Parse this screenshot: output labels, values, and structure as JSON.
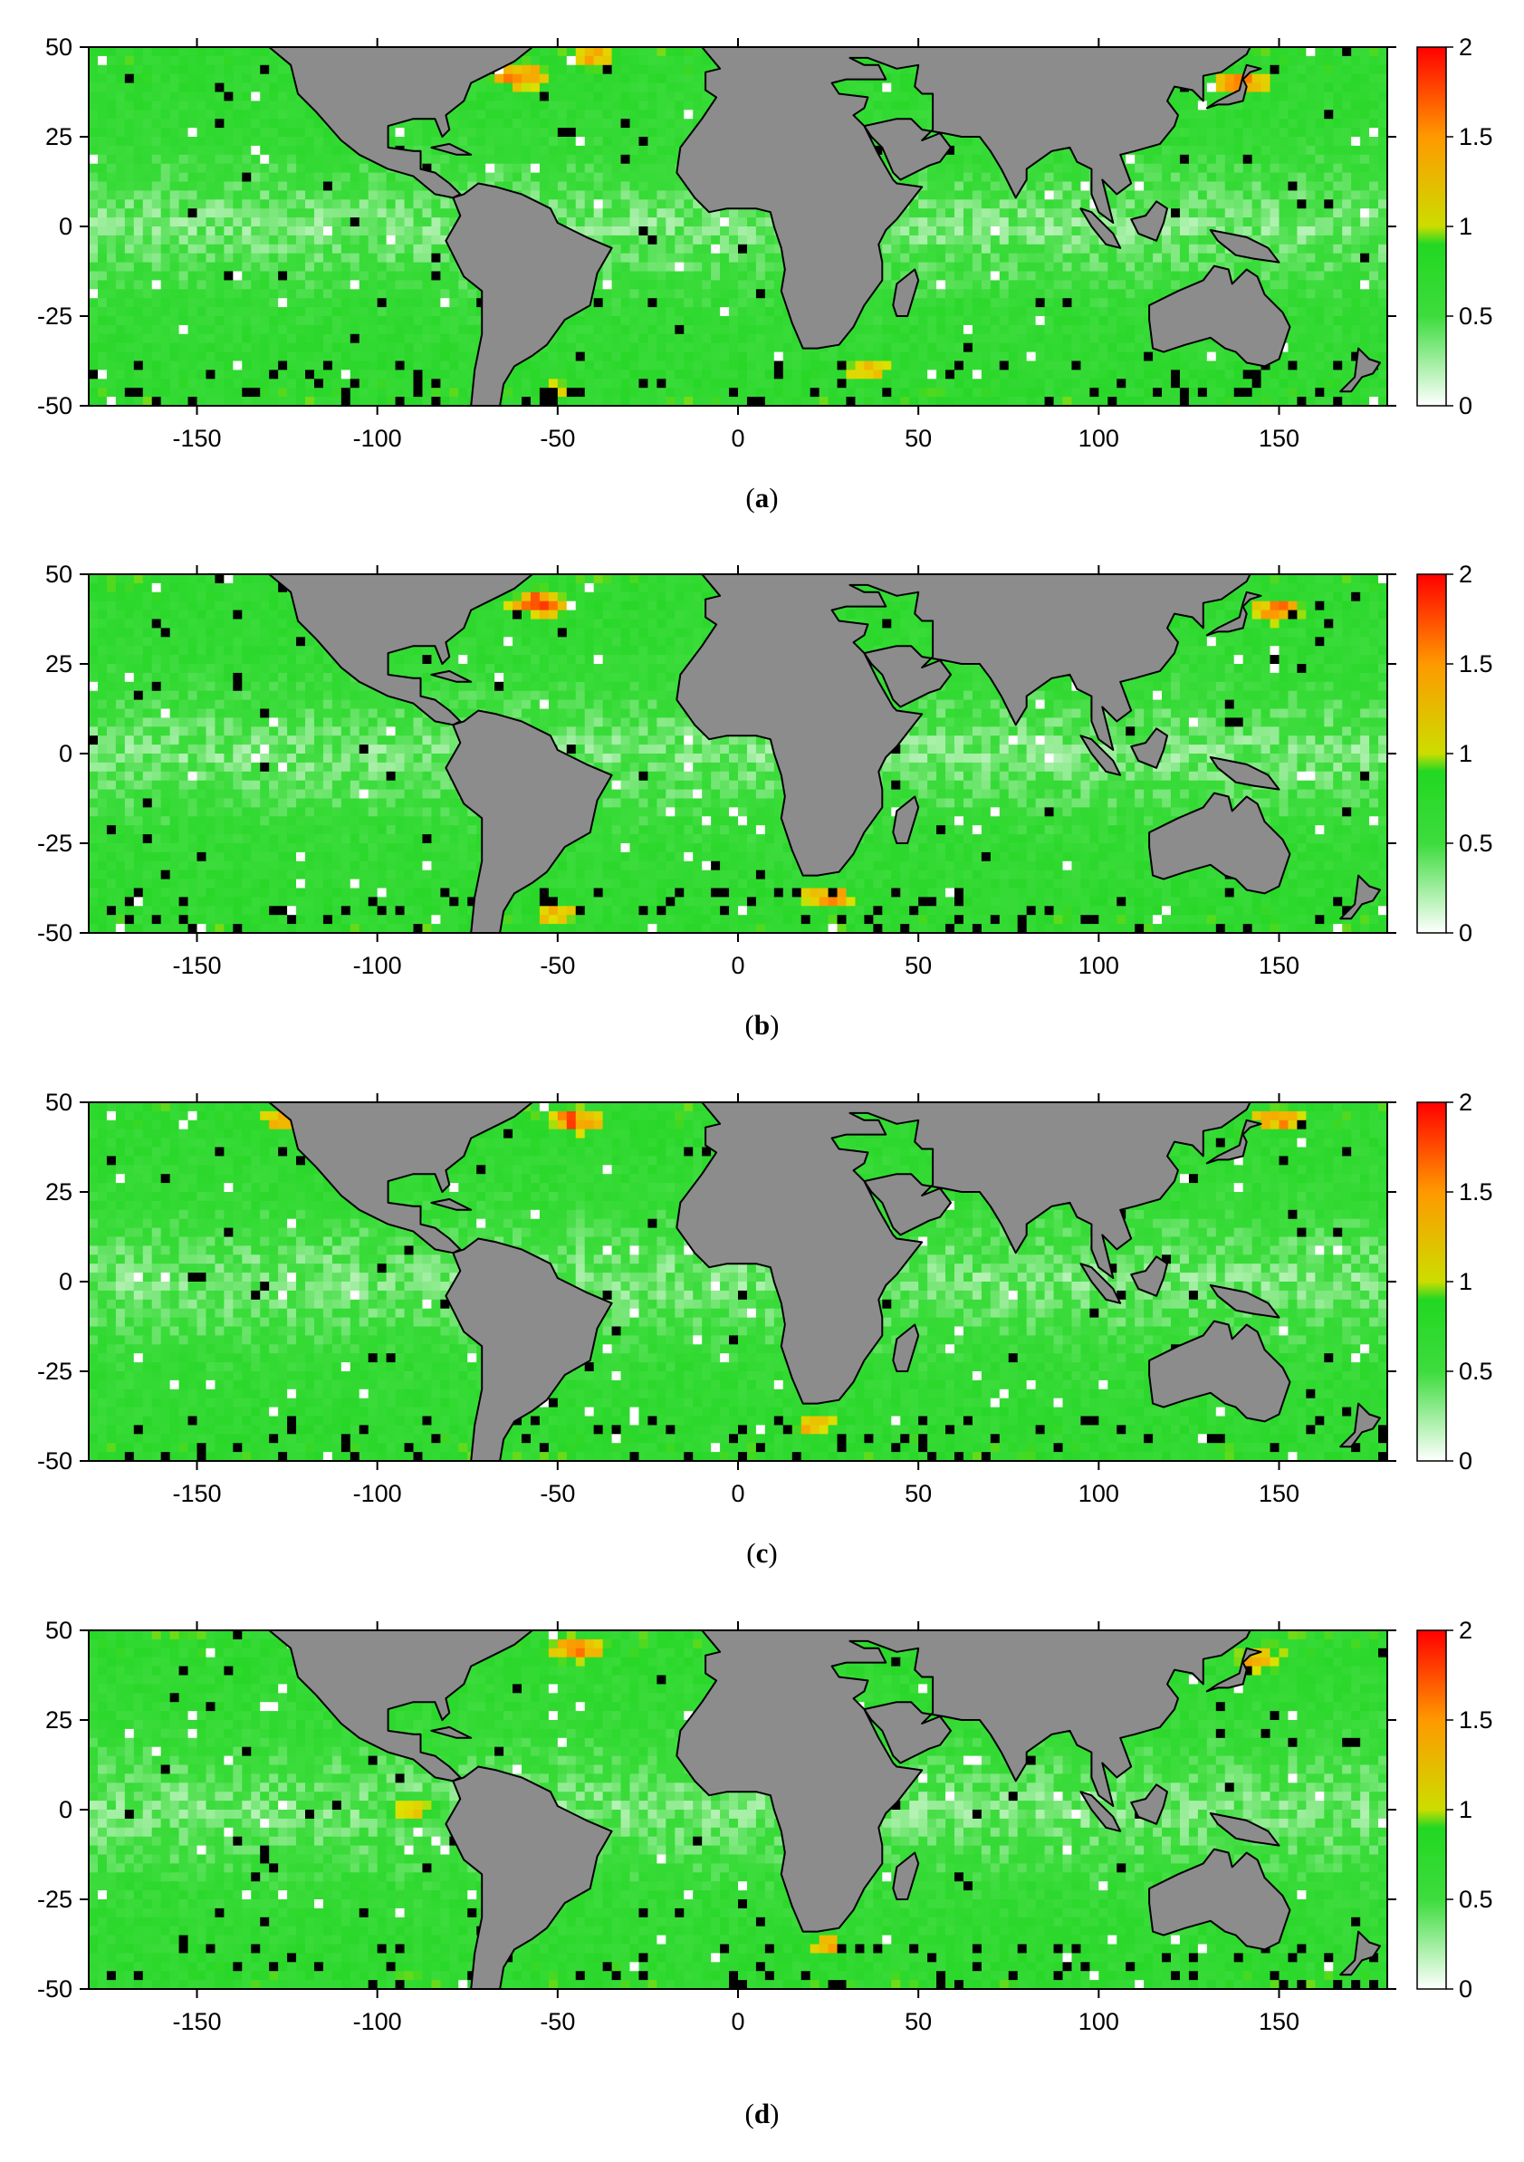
{
  "colors": {
    "land": "#8c8c8c",
    "coast": "#000000",
    "missing": "#000000",
    "ocean_low": "#ffffff",
    "ocean_mid": "#22dd22",
    "ocean_mid2": "#ccdd00",
    "ocean_hi": "#ff9900",
    "ocean_max": "#ff0000"
  },
  "chart_data": [
    {
      "type": "heatmap",
      "panel": "a",
      "caption": "a",
      "xlim": [
        -180,
        180
      ],
      "ylim": [
        -50,
        50
      ],
      "x_ticks": [
        "-150",
        "-100",
        "-50",
        "0",
        "50",
        "100",
        "150"
      ],
      "y_ticks": [
        "50",
        "25",
        "0",
        "-25",
        "-50"
      ],
      "colorbar": {
        "range": [
          0,
          2
        ],
        "ticks": [
          "2",
          "1.5",
          "1",
          "0.5",
          "0"
        ]
      },
      "hotspots": [
        {
          "lon": -60,
          "lat": 42,
          "value": 1.8
        },
        {
          "lon": -40,
          "lat": 47,
          "value": 1.5
        },
        {
          "lon": 35,
          "lat": -40,
          "value": 1.4
        },
        {
          "lon": 140,
          "lat": 40,
          "value": 1.7
        },
        {
          "lon": -50,
          "lat": -45,
          "value": 1.3
        }
      ]
    },
    {
      "type": "heatmap",
      "panel": "b",
      "caption": "b",
      "xlim": [
        -180,
        180
      ],
      "ylim": [
        -50,
        50
      ],
      "x_ticks": [
        "-150",
        "-100",
        "-50",
        "0",
        "50",
        "100",
        "150"
      ],
      "y_ticks": [
        "50",
        "25",
        "0",
        "-25",
        "-50"
      ],
      "colorbar": {
        "range": [
          0,
          2
        ],
        "ticks": [
          "2",
          "1.5",
          "1",
          "0.5",
          "0"
        ]
      },
      "hotspots": [
        {
          "lon": -55,
          "lat": 42,
          "value": 1.9
        },
        {
          "lon": 25,
          "lat": -40,
          "value": 1.6
        },
        {
          "lon": 150,
          "lat": 40,
          "value": 1.7
        },
        {
          "lon": -50,
          "lat": -45,
          "value": 1.4
        }
      ]
    },
    {
      "type": "heatmap",
      "panel": "c",
      "caption": "c",
      "xlim": [
        -180,
        180
      ],
      "ylim": [
        -50,
        50
      ],
      "x_ticks": [
        "-150",
        "-100",
        "-50",
        "0",
        "50",
        "100",
        "150"
      ],
      "y_ticks": [
        "50",
        "25",
        "0",
        "-25",
        "-50"
      ],
      "colorbar": {
        "range": [
          0,
          2
        ],
        "ticks": [
          "2",
          "1.5",
          "1",
          "0.5",
          "0"
        ]
      },
      "hotspots": [
        {
          "lon": -45,
          "lat": 45,
          "value": 1.8
        },
        {
          "lon": -125,
          "lat": 45,
          "value": 1.5
        },
        {
          "lon": 20,
          "lat": -40,
          "value": 1.4
        },
        {
          "lon": 150,
          "lat": 45,
          "value": 1.6
        }
      ]
    },
    {
      "type": "heatmap",
      "panel": "d",
      "caption": "d",
      "xlim": [
        -180,
        180
      ],
      "ylim": [
        -50,
        50
      ],
      "x_ticks": [
        "-150",
        "-100",
        "-50",
        "0",
        "50",
        "100",
        "150"
      ],
      "y_ticks": [
        "50",
        "25",
        "0",
        "-25",
        "-50"
      ],
      "colorbar": {
        "range": [
          0,
          2
        ],
        "ticks": [
          "2",
          "1.5",
          "1",
          "0.5",
          "0"
        ]
      },
      "hotspots": [
        {
          "lon": -45,
          "lat": 45,
          "value": 1.8
        },
        {
          "lon": 25,
          "lat": -38,
          "value": 1.4
        },
        {
          "lon": 145,
          "lat": 42,
          "value": 1.5
        },
        {
          "lon": -90,
          "lat": 0,
          "value": 1.2
        }
      ]
    }
  ]
}
